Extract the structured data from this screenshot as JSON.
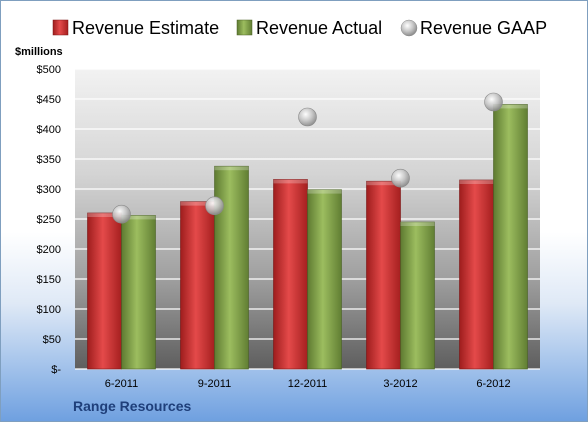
{
  "company": "Range Resources",
  "chart_data": {
    "type": "bar",
    "title": "",
    "xlabel": "",
    "ylabel": "$millions",
    "ylim": [
      0,
      500
    ],
    "yticks": [
      0,
      50,
      100,
      150,
      200,
      250,
      300,
      350,
      400,
      450,
      500
    ],
    "ytick_labels": [
      "$-",
      "$50",
      "$100",
      "$150",
      "$200",
      "$250",
      "$300",
      "$350",
      "$400",
      "$450",
      "$500"
    ],
    "categories": [
      "6-2011",
      "9-2011",
      "12-2011",
      "3-2012",
      "6-2012"
    ],
    "series": [
      {
        "name": "Revenue Estimate",
        "kind": "bar",
        "color": "#cc2b2b",
        "values": [
          260,
          279,
          316,
          313,
          315
        ]
      },
      {
        "name": "Revenue Actual",
        "kind": "bar",
        "color": "#7fa04a",
        "values": [
          256,
          338,
          299,
          245,
          441
        ]
      },
      {
        "name": "Revenue GAAP",
        "kind": "marker",
        "color": "#b8b8b8",
        "values": [
          258,
          272,
          420,
          318,
          445
        ]
      }
    ],
    "grid": true,
    "legend": "top"
  }
}
